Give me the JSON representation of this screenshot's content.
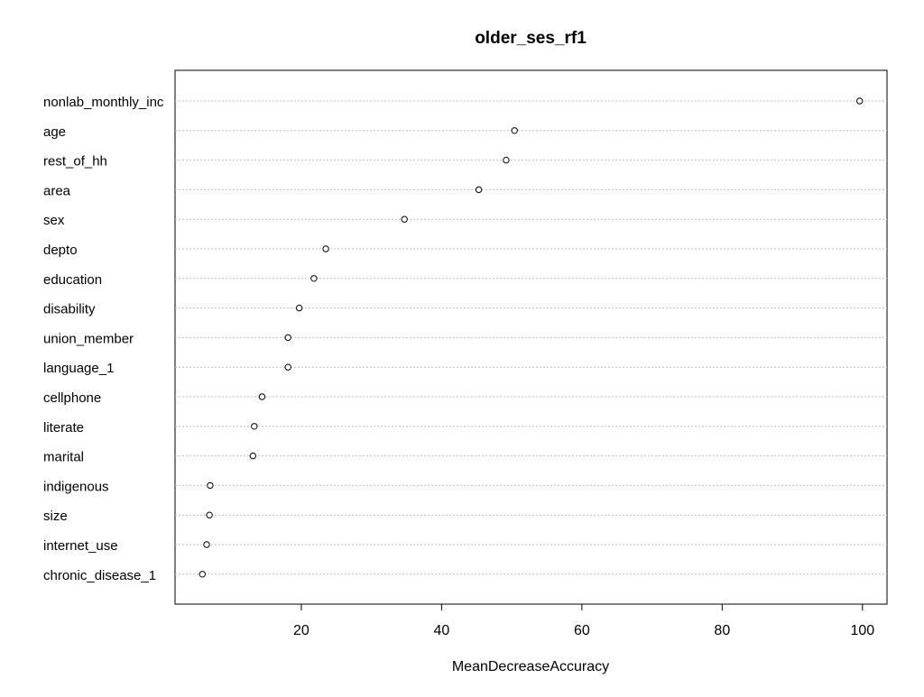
{
  "chart_data": {
    "type": "scatter",
    "title": "older_ses_rf1",
    "xlabel": "MeanDecreaseAccuracy",
    "ylabel": "",
    "xlim": [
      2,
      103.5
    ],
    "xticks": [
      20,
      40,
      60,
      80,
      100
    ],
    "grid": "dotted horizontal guide lines",
    "categories": [
      "nonlab_monthly_inc",
      "age",
      "rest_of_hh",
      "area",
      "sex",
      "depto",
      "education",
      "disability",
      "union_member",
      "language_1",
      "cellphone",
      "literate",
      "marital",
      "indigenous",
      "size",
      "internet_use",
      "chronic_disease_1"
    ],
    "values": [
      99.6,
      50.4,
      49.2,
      45.3,
      34.7,
      23.5,
      21.8,
      19.7,
      18.1,
      18.1,
      14.4,
      13.3,
      13.1,
      7.0,
      6.9,
      6.5,
      5.9
    ],
    "colors": {
      "points": "#000000",
      "grid": "#bebebe",
      "axis": "#000000",
      "text": "#000000"
    }
  }
}
